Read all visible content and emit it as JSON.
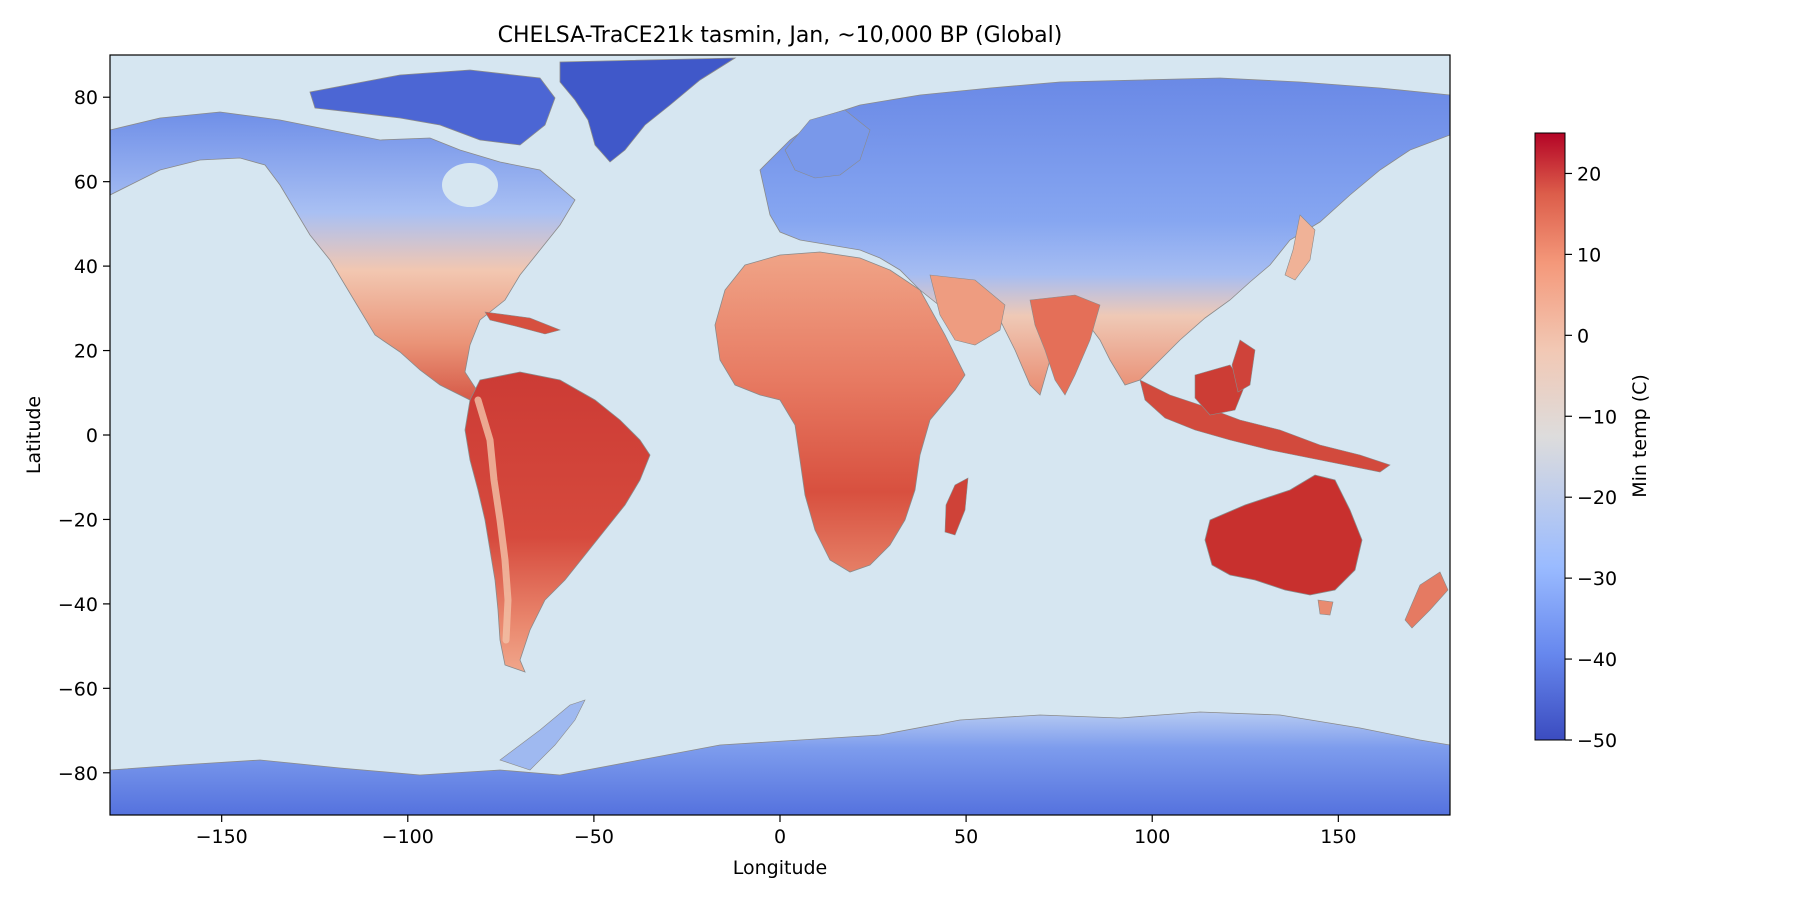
{
  "title": "CHELSA-TraCE21k tasmin, Jan, ~10,000 BP (Global)",
  "map": {
    "type": "raster-map",
    "projection": "plate carrée (equirectangular)",
    "xlabel": "Longitude",
    "ylabel": "Latitude",
    "xlim": [
      -180,
      180
    ],
    "ylim": [
      -90,
      90
    ],
    "xticks": [
      {
        "value": -150,
        "label": "−150"
      },
      {
        "value": -100,
        "label": "−100"
      },
      {
        "value": -50,
        "label": "−50"
      },
      {
        "value": 0,
        "label": "0"
      },
      {
        "value": 50,
        "label": "50"
      },
      {
        "value": 100,
        "label": "100"
      },
      {
        "value": 150,
        "label": "150"
      }
    ],
    "yticks": [
      {
        "value": 80,
        "label": "80"
      },
      {
        "value": 60,
        "label": "60"
      },
      {
        "value": 40,
        "label": "40"
      },
      {
        "value": 20,
        "label": "20"
      },
      {
        "value": 0,
        "label": "0"
      },
      {
        "value": -20,
        "label": "−20"
      },
      {
        "value": -40,
        "label": "−40"
      },
      {
        "value": -60,
        "label": "−60"
      },
      {
        "value": -80,
        "label": "−80"
      }
    ],
    "ocean_color": "#d6e6f1",
    "coastline_color": "#8a8a8a"
  },
  "colorbar": {
    "label": "Min temp (C)",
    "colormap": "coolwarm",
    "min": -50,
    "max": 25,
    "ticks": [
      {
        "value": 20,
        "label": "20"
      },
      {
        "value": 10,
        "label": "10"
      },
      {
        "value": 0,
        "label": "0"
      },
      {
        "value": -10,
        "label": "−10"
      },
      {
        "value": -20,
        "label": "−20"
      },
      {
        "value": -30,
        "label": "−30"
      },
      {
        "value": -40,
        "label": "−40"
      },
      {
        "value": -50,
        "label": "−50"
      }
    ],
    "stops": [
      "#3b4cc0",
      "#6788ee",
      "#9abbff",
      "#c9d7f0",
      "#edd1c2",
      "#f7a889",
      "#e26952",
      "#b40426"
    ]
  },
  "colors": {
    "cold": "#3f56c9",
    "cool": "#7f9ff0",
    "mild": "#f0c2a9",
    "warm": "#e8826b",
    "hot": "#c93a33"
  }
}
